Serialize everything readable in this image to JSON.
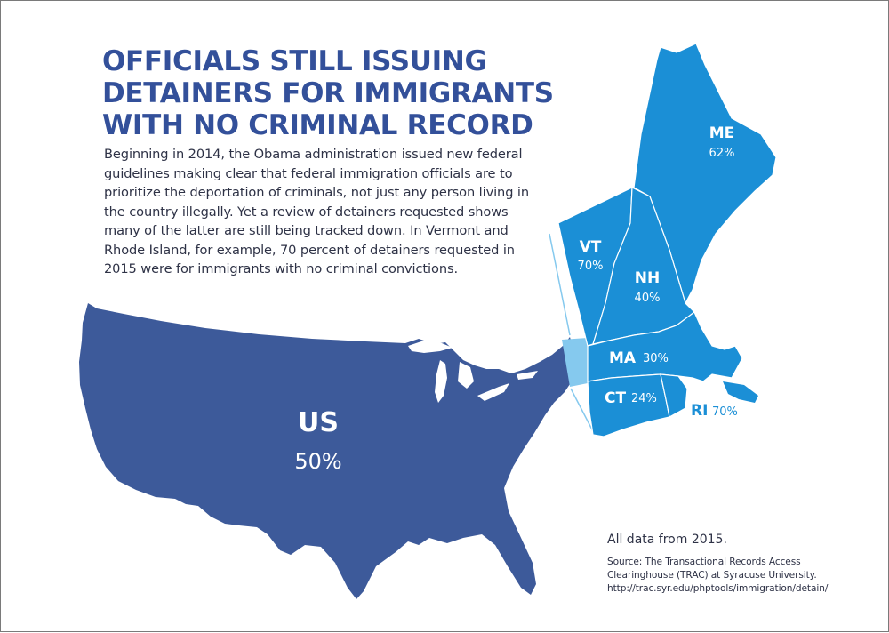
{
  "title_lines": [
    "OFFICIALS STILL ISSUING",
    "DETAINERS FOR IMMIGRANTS",
    "WITH NO CRIMINAL RECORD"
  ],
  "body_lines": [
    "Beginning in 2014, the Obama administration issued new federal",
    "guidelines making clear that federal immigration officials are to",
    "prioritize the deportation of criminals, not just any person living in",
    "the country illegally. Yet a review of detainers requested shows",
    "many of the latter are still being tracked down. In Vermont and",
    "Rhode Island, for example, 70 percent of detainers requested in",
    "2015 were for immigrants with no criminal convictions."
  ],
  "colors": {
    "title": "#33509a",
    "us_fill": "#3d5a9a",
    "new_england_fill": "#1b8fd6",
    "new_york_sliver": "#85c9ee",
    "state_border": "#ffffff",
    "text": "#2e3246"
  },
  "regions": {
    "us": {
      "abbr": "US",
      "pct": "50%"
    },
    "states": [
      {
        "abbr": "ME",
        "pct": "62%"
      },
      {
        "abbr": "VT",
        "pct": "70%"
      },
      {
        "abbr": "NH",
        "pct": "40%"
      },
      {
        "abbr": "MA",
        "pct": "30%"
      },
      {
        "abbr": "CT",
        "pct": "24%"
      },
      {
        "abbr": "RI",
        "pct": "70%"
      }
    ]
  },
  "footnote": {
    "data_year": "All data from 2015.",
    "source_lines": [
      "Source: The Transactional Records Access",
      "Clearinghouse (TRAC) at Syracuse University.",
      "http://trac.syr.edu/phptools/immigration/detain/"
    ]
  }
}
